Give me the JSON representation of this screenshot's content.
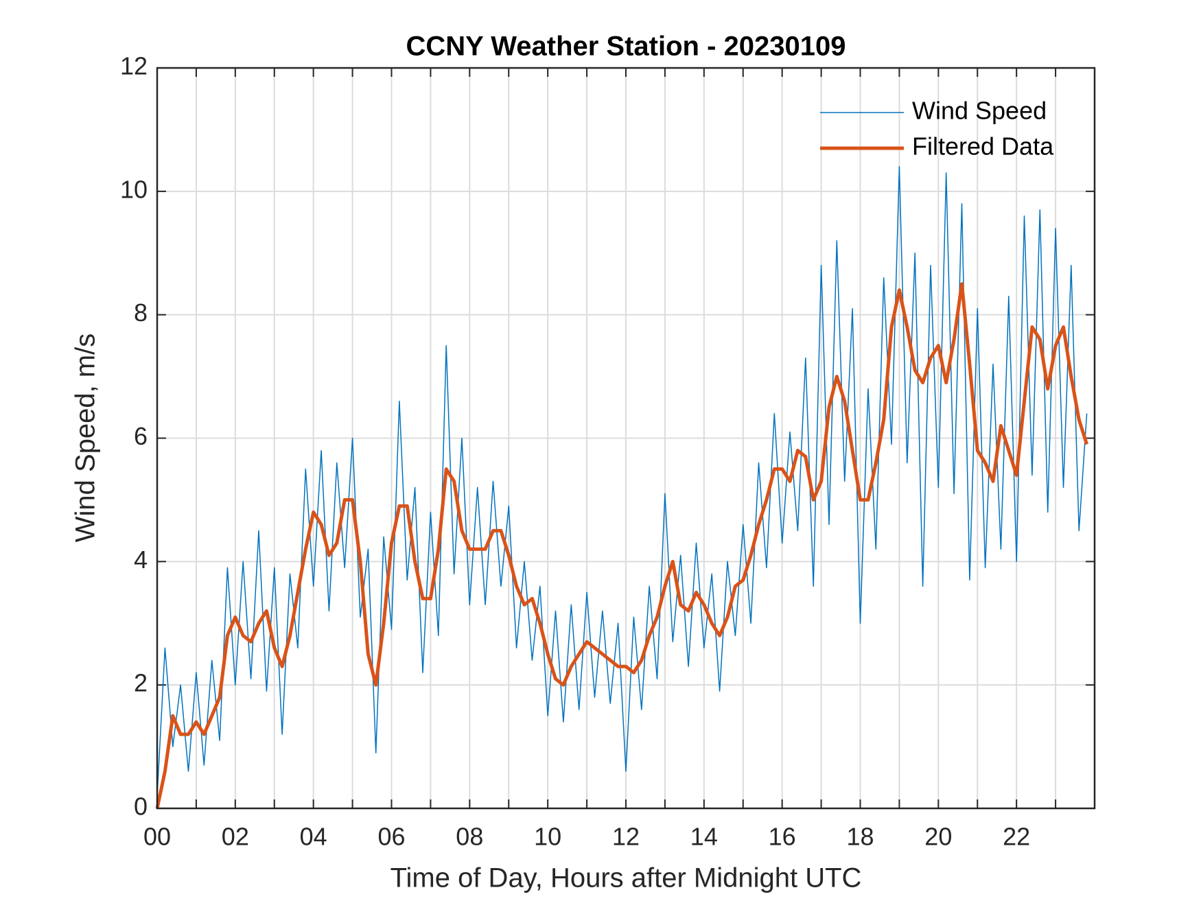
{
  "chart_data": {
    "type": "line",
    "title": "CCNY Weather Station - 20230109",
    "xlabel": "Time of Day, Hours after Midnight UTC",
    "ylabel": "Wind Speed, m/s",
    "x": [
      0,
      0.2,
      0.4,
      0.6,
      0.8,
      1,
      1.2,
      1.4,
      1.6,
      1.8,
      2,
      2.2,
      2.4,
      2.6,
      2.8,
      3,
      3.2,
      3.4,
      3.6,
      3.8,
      4,
      4.2,
      4.4,
      4.6,
      4.8,
      5,
      5.2,
      5.4,
      5.6,
      5.8,
      6,
      6.2,
      6.4,
      6.6,
      6.8,
      7,
      7.2,
      7.4,
      7.6,
      7.8,
      8,
      8.2,
      8.4,
      8.6,
      8.8,
      9,
      9.2,
      9.4,
      9.6,
      9.8,
      10,
      10.2,
      10.4,
      10.6,
      10.8,
      11,
      11.2,
      11.4,
      11.6,
      11.8,
      12,
      12.2,
      12.4,
      12.6,
      12.8,
      13,
      13.2,
      13.4,
      13.6,
      13.8,
      14,
      14.2,
      14.4,
      14.6,
      14.8,
      15,
      15.2,
      15.4,
      15.6,
      15.8,
      16,
      16.2,
      16.4,
      16.6,
      16.8,
      17,
      17.2,
      17.4,
      17.6,
      17.8,
      18,
      18.2,
      18.4,
      18.6,
      18.8,
      19,
      19.2,
      19.4,
      19.6,
      19.8,
      20,
      20.2,
      20.4,
      20.6,
      20.8,
      21,
      21.2,
      21.4,
      21.6,
      21.8,
      22,
      22.2,
      22.4,
      22.6,
      22.8,
      23,
      23.2,
      23.4,
      23.6,
      23.8
    ],
    "series": [
      {
        "name": "Wind Speed",
        "color": "#0072BD",
        "width": 1.5,
        "values": [
          0.2,
          2.6,
          1.0,
          2.0,
          0.6,
          2.2,
          0.7,
          2.4,
          1.1,
          3.9,
          2.0,
          4.0,
          2.1,
          4.5,
          1.9,
          3.9,
          1.2,
          3.8,
          2.6,
          5.5,
          3.6,
          5.8,
          3.2,
          5.6,
          3.9,
          6.0,
          3.1,
          4.2,
          0.9,
          4.4,
          2.9,
          6.6,
          3.7,
          5.2,
          2.2,
          4.8,
          2.8,
          7.5,
          3.8,
          6.0,
          3.3,
          5.2,
          3.3,
          5.3,
          3.6,
          4.9,
          2.6,
          4.0,
          2.4,
          3.6,
          1.5,
          3.2,
          1.4,
          3.3,
          1.6,
          3.5,
          1.8,
          3.2,
          1.7,
          3.0,
          0.6,
          3.1,
          1.6,
          3.6,
          2.1,
          5.1,
          2.7,
          4.1,
          2.3,
          4.3,
          2.6,
          3.8,
          1.9,
          4.0,
          2.8,
          4.6,
          3.0,
          5.6,
          3.9,
          6.4,
          4.3,
          6.1,
          4.5,
          7.3,
          3.6,
          8.8,
          4.6,
          9.2,
          5.3,
          8.1,
          3.0,
          6.8,
          4.2,
          8.6,
          5.9,
          10.4,
          5.6,
          9.0,
          3.6,
          8.8,
          5.2,
          10.3,
          5.1,
          9.8,
          3.7,
          8.1,
          3.9,
          7.2,
          4.2,
          8.3,
          4.0,
          9.6,
          5.4,
          9.7,
          4.8,
          9.4,
          5.2,
          8.8,
          4.5,
          6.4
        ]
      },
      {
        "name": "Filtered Data",
        "color": "#D95319",
        "width": 5,
        "values": [
          0,
          0.6,
          1.5,
          1.2,
          1.2,
          1.4,
          1.2,
          1.5,
          1.8,
          2.8,
          3.1,
          2.8,
          2.7,
          3.0,
          3.2,
          2.6,
          2.3,
          2.8,
          3.5,
          4.2,
          4.8,
          4.6,
          4.1,
          4.3,
          5.0,
          5.0,
          4.0,
          2.5,
          2.0,
          3.0,
          4.3,
          4.9,
          4.9,
          4.0,
          3.4,
          3.4,
          4.2,
          5.5,
          5.3,
          4.5,
          4.2,
          4.2,
          4.2,
          4.5,
          4.5,
          4.1,
          3.6,
          3.3,
          3.4,
          3.0,
          2.5,
          2.1,
          2.0,
          2.3,
          2.5,
          2.7,
          2.6,
          2.5,
          2.4,
          2.3,
          2.3,
          2.2,
          2.4,
          2.8,
          3.1,
          3.6,
          4.0,
          3.3,
          3.2,
          3.5,
          3.3,
          3.0,
          2.8,
          3.1,
          3.6,
          3.7,
          4.1,
          4.6,
          5.0,
          5.5,
          5.5,
          5.3,
          5.8,
          5.7,
          5.0,
          5.3,
          6.5,
          7.0,
          6.6,
          5.8,
          5.0,
          5.0,
          5.6,
          6.3,
          7.8,
          8.4,
          7.8,
          7.1,
          6.9,
          7.3,
          7.5,
          6.9,
          7.6,
          8.5,
          7.2,
          5.8,
          5.6,
          5.3,
          6.2,
          5.8,
          5.4,
          6.6,
          7.8,
          7.6,
          6.8,
          7.5,
          7.8,
          7.0,
          6.3,
          5.9
        ]
      }
    ],
    "xlim": [
      0,
      24
    ],
    "xticks": [
      {
        "value": 0,
        "label": "00"
      },
      {
        "value": 2,
        "label": "02"
      },
      {
        "value": 4,
        "label": "04"
      },
      {
        "value": 6,
        "label": "06"
      },
      {
        "value": 8,
        "label": "08"
      },
      {
        "value": 10,
        "label": "10"
      },
      {
        "value": 12,
        "label": "12"
      },
      {
        "value": 14,
        "label": "14"
      },
      {
        "value": 16,
        "label": "16"
      },
      {
        "value": 18,
        "label": "18"
      },
      {
        "value": 20,
        "label": "20"
      },
      {
        "value": 22,
        "label": "22"
      }
    ],
    "xminorticks": [
      1,
      3,
      5,
      7,
      9,
      11,
      13,
      15,
      17,
      19,
      21,
      23
    ],
    "ylim": [
      0,
      12
    ],
    "yticks": [
      0,
      2,
      4,
      6,
      8,
      10,
      12
    ],
    "grid": true,
    "legend": "upper right"
  }
}
